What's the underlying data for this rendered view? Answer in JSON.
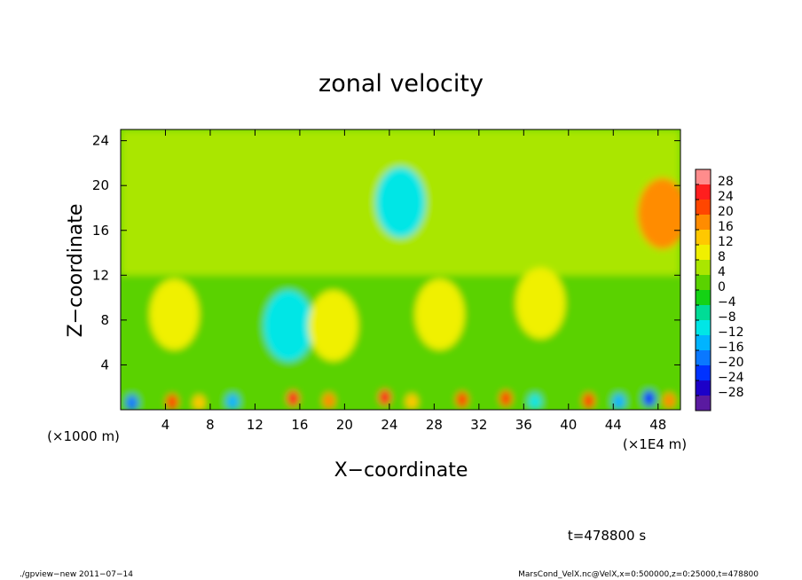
{
  "chart_data": {
    "type": "heatmap",
    "title": "zonal velocity",
    "xlabel": "X−coordinate",
    "ylabel": "Z−coordinate",
    "xunit": "(×1E4 m)",
    "yunit": "(×1000 m)",
    "xlim": [
      0,
      50
    ],
    "ylim": [
      0,
      25
    ],
    "xticks": [
      "4",
      "8",
      "12",
      "16",
      "20",
      "24",
      "28",
      "32",
      "36",
      "40",
      "44",
      "48"
    ],
    "xtick_values": [
      4,
      8,
      12,
      16,
      20,
      24,
      28,
      32,
      36,
      40,
      44,
      48
    ],
    "yticks": [
      "4",
      "8",
      "12",
      "16",
      "20",
      "24"
    ],
    "ytick_values": [
      4,
      8,
      12,
      16,
      20,
      24
    ],
    "colorbar": {
      "levels": [
        -28,
        -24,
        -20,
        -16,
        -12,
        -8,
        -4,
        0,
        4,
        8,
        12,
        16,
        20,
        24,
        28
      ],
      "labels": [
        "28",
        "24",
        "20",
        "16",
        "12",
        "8",
        "4",
        "0",
        "−4",
        "−8",
        "−12",
        "−16",
        "−20",
        "−24",
        "−28"
      ],
      "colors": [
        "#5a1aa0",
        "#1c00c8",
        "#0032ff",
        "#0a78ff",
        "#00b4ff",
        "#00e6e6",
        "#00dc96",
        "#14d214",
        "#5ad200",
        "#aae600",
        "#f0f000",
        "#ffc800",
        "#ff8c00",
        "#ff4600",
        "#ff1e1e",
        "#ff8c8c"
      ]
    },
    "field_description_levels": {
      "background_upper": "#5ad200",
      "mid_band": "#14d214"
    },
    "hotspots": [
      {
        "x": 1.0,
        "z": 0.6,
        "value": -20
      },
      {
        "x": 4.6,
        "z": 0.7,
        "value": 22
      },
      {
        "x": 7.0,
        "z": 0.6,
        "value": 14
      },
      {
        "x": 10.0,
        "z": 0.7,
        "value": -14
      },
      {
        "x": 15.4,
        "z": 1.0,
        "value": 24
      },
      {
        "x": 15.0,
        "z": 7.5,
        "value": -12
      },
      {
        "x": 18.6,
        "z": 0.8,
        "value": 16
      },
      {
        "x": 23.6,
        "z": 1.1,
        "value": 26
      },
      {
        "x": 26.0,
        "z": 0.7,
        "value": 14
      },
      {
        "x": 30.5,
        "z": 0.9,
        "value": 22
      },
      {
        "x": 34.4,
        "z": 1.0,
        "value": 20
      },
      {
        "x": 37.0,
        "z": 0.7,
        "value": -12
      },
      {
        "x": 41.8,
        "z": 0.8,
        "value": 20
      },
      {
        "x": 44.5,
        "z": 0.7,
        "value": -14
      },
      {
        "x": 47.2,
        "z": 1.0,
        "value": -22
      },
      {
        "x": 49.0,
        "z": 0.8,
        "value": 18
      },
      {
        "x": 48.4,
        "z": 17.5,
        "value": 16
      },
      {
        "x": 25.0,
        "z": 18.5,
        "value": -10
      },
      {
        "x": 4.8,
        "z": 8.5,
        "value": 10
      },
      {
        "x": 19.0,
        "z": 7.5,
        "value": 10
      },
      {
        "x": 28.5,
        "z": 8.5,
        "value": 10
      },
      {
        "x": 37.5,
        "z": 9.5,
        "value": 10
      }
    ]
  },
  "footer": {
    "time_label": "t=478800 s",
    "program": "./gpview−new   2011−07−14",
    "source": "MarsCond_VelX.nc@VelX,x=0:500000,z=0:25000,t=478800"
  }
}
